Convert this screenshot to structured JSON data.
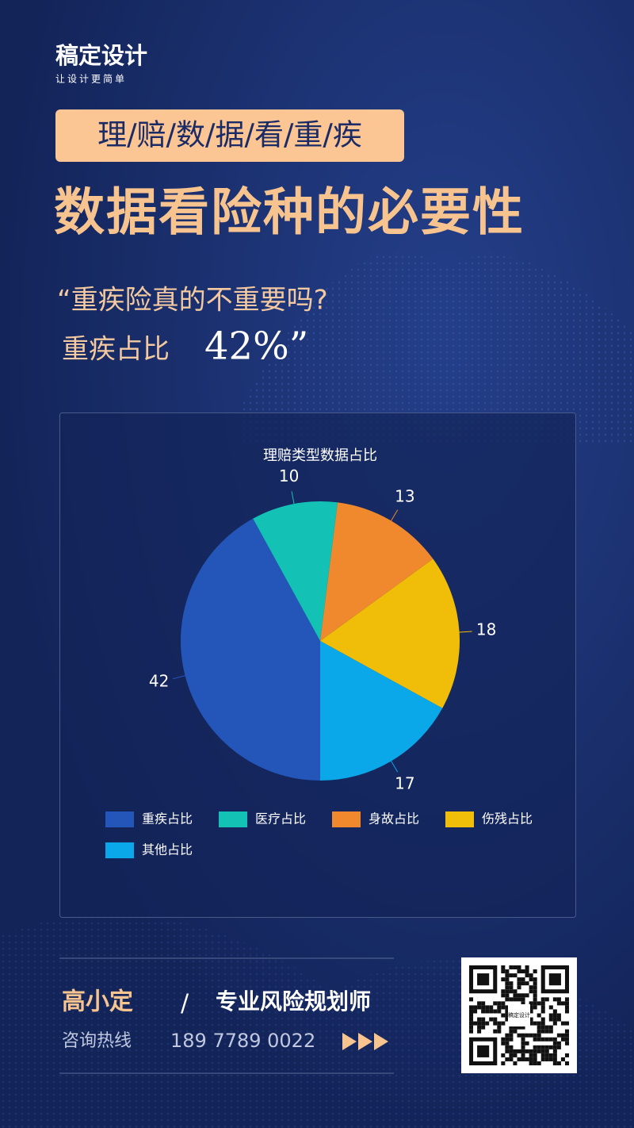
{
  "brand": {
    "name": "稿定设计",
    "slogan": "让设计更简单"
  },
  "tag": "理/赔/数/据/看/重/疾",
  "headline": "数据看险种的必要性",
  "quote": {
    "line1": "“重疾险真的不重要吗?",
    "line2_prefix": "重疾占比",
    "line2_figure": "42%”"
  },
  "chart_data": {
    "type": "pie",
    "title": "理赔类型数据占比",
    "categories": [
      "重疾占比",
      "医疗占比",
      "身故占比",
      "伤残占比",
      "其他占比"
    ],
    "values": [
      42,
      10,
      13,
      18,
      17
    ],
    "colors": [
      "#2356b8",
      "#13c2b4",
      "#f0892e",
      "#f0bd08",
      "#0aa8e8"
    ],
    "legend": "bottom"
  },
  "footer": {
    "name": "高小定",
    "separator": "/",
    "role": "专业风险规划师",
    "hotline_label": "咨询热线",
    "phone": "189 7789 0022"
  },
  "qr_label": "稿定设计"
}
